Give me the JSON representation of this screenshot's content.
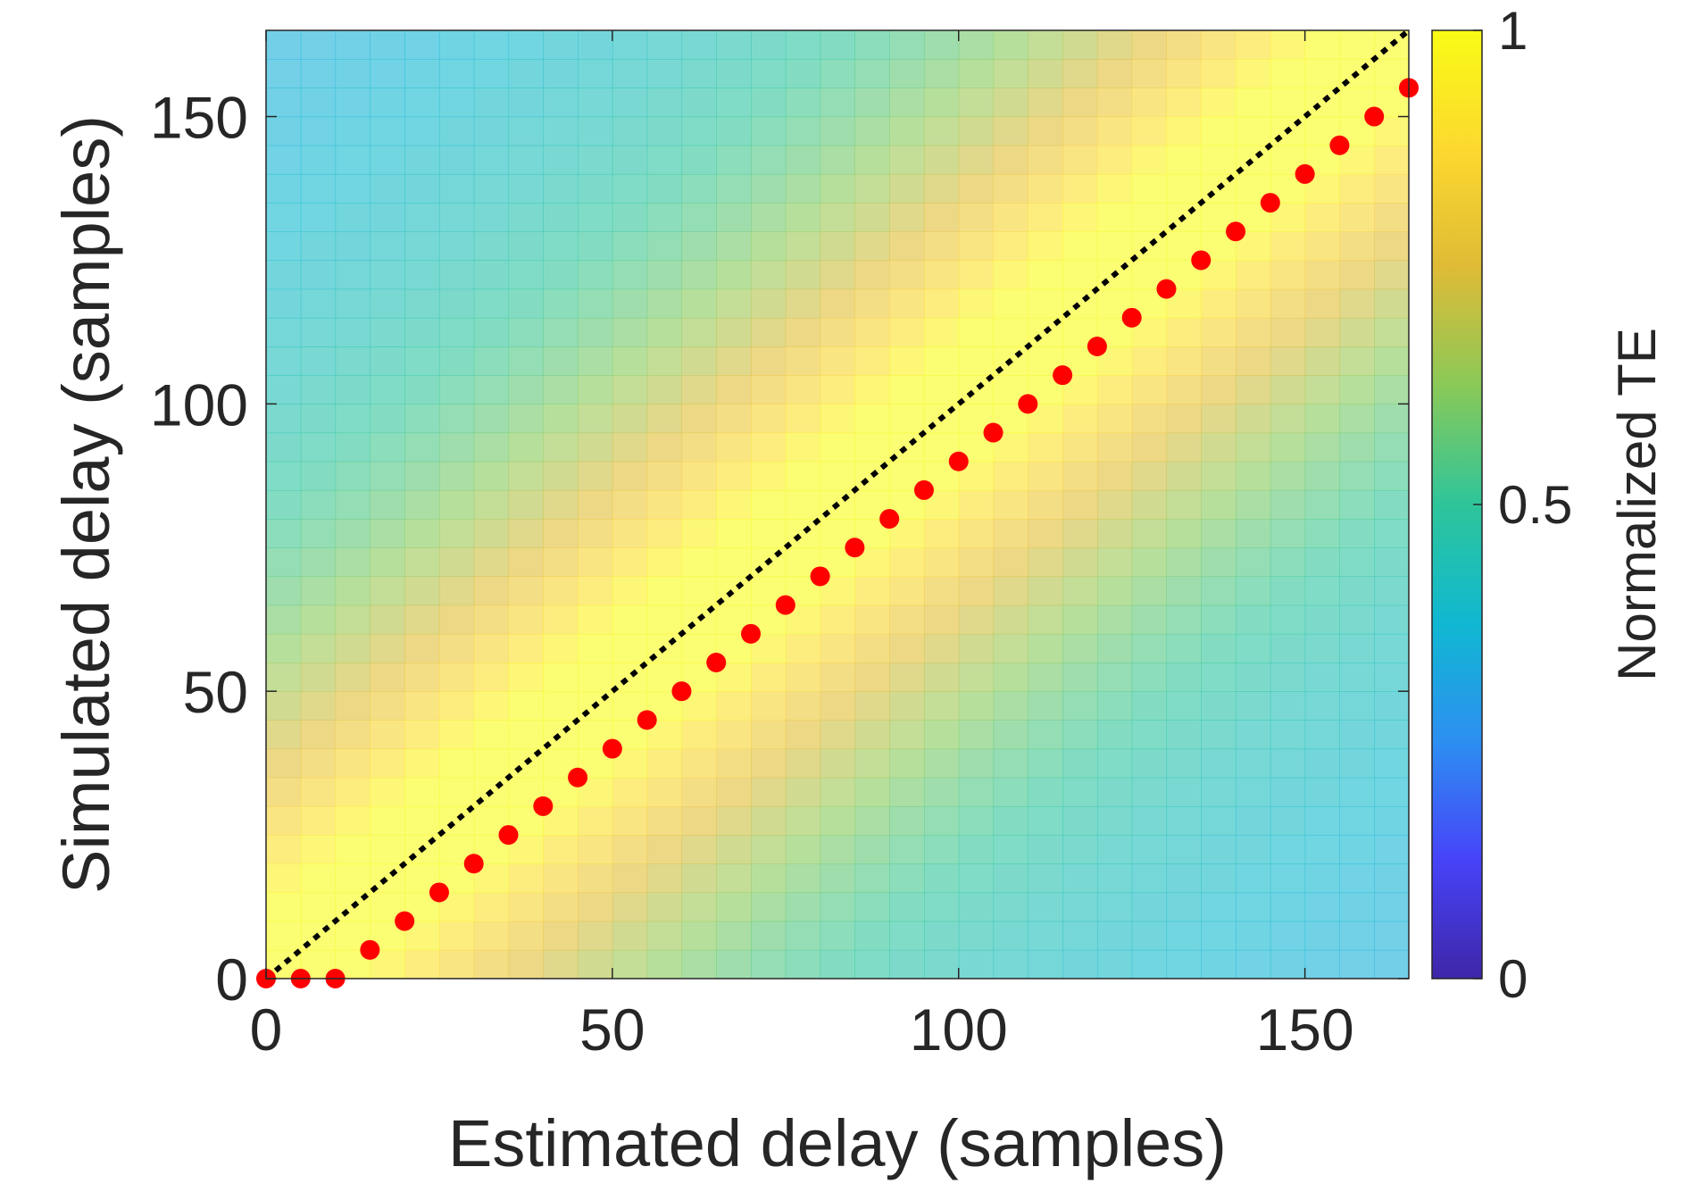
{
  "chart_data": {
    "type": "heatmap",
    "xlabel": "Estimated delay (samples)",
    "ylabel": "Simulated delay (samples)",
    "xlim": [
      0,
      165
    ],
    "ylim": [
      0,
      165
    ],
    "grid": {
      "x_bins": 33,
      "y_bins": 33,
      "bin_size": 5
    },
    "xticks": [
      {
        "value": 0,
        "label": "0"
      },
      {
        "value": 50,
        "label": "50"
      },
      {
        "value": 100,
        "label": "100"
      },
      {
        "value": 150,
        "label": "150"
      }
    ],
    "yticks": [
      {
        "value": 0,
        "label": "0"
      },
      {
        "value": 50,
        "label": "50"
      },
      {
        "value": 100,
        "label": "100"
      },
      {
        "value": 150,
        "label": "150"
      }
    ],
    "colorbar": {
      "label": "Normalized TE",
      "range": [
        0,
        1
      ],
      "ticks": [
        {
          "value": 0,
          "label": "0"
        },
        {
          "value": 0.5,
          "label": "0.5"
        },
        {
          "value": 1,
          "label": "1"
        }
      ],
      "colormap": [
        "#3e26a8",
        "#4743f8",
        "#2d8ff2",
        "#10b8d1",
        "#2ec59a",
        "#8ac958",
        "#dfbb36",
        "#fcd92f",
        "#f9fb15"
      ]
    },
    "heatmap_model": {
      "description": "Normalized TE peaks near the identity diagonal (high, ~1 yellow band) and decays with distance from it",
      "peak_value": 1.0,
      "band_halfwidth_samples": 12,
      "decay_scale_samples": 55,
      "floor_value": 0.3,
      "cell_opacity": 0.6
    },
    "series": [
      {
        "name": "identity line",
        "type": "line",
        "style": "dotted",
        "color": "#000000",
        "x": [
          0,
          165
        ],
        "y": [
          0,
          165
        ]
      },
      {
        "name": "estimated delay",
        "type": "scatter",
        "color": "#ff0000",
        "x": [
          0,
          5,
          10,
          15,
          20,
          25,
          30,
          35,
          40,
          45,
          50,
          55,
          60,
          65,
          70,
          75,
          80,
          85,
          90,
          95,
          100,
          105,
          110,
          115,
          120,
          125,
          130,
          135,
          140,
          145,
          150,
          155,
          160,
          165
        ],
        "y": [
          0,
          0,
          0,
          5,
          10,
          15,
          20,
          25,
          30,
          35,
          40,
          45,
          50,
          55,
          60,
          65,
          70,
          75,
          80,
          85,
          90,
          95,
          100,
          105,
          110,
          115,
          120,
          125,
          130,
          135,
          140,
          145,
          150,
          155
        ]
      }
    ]
  }
}
